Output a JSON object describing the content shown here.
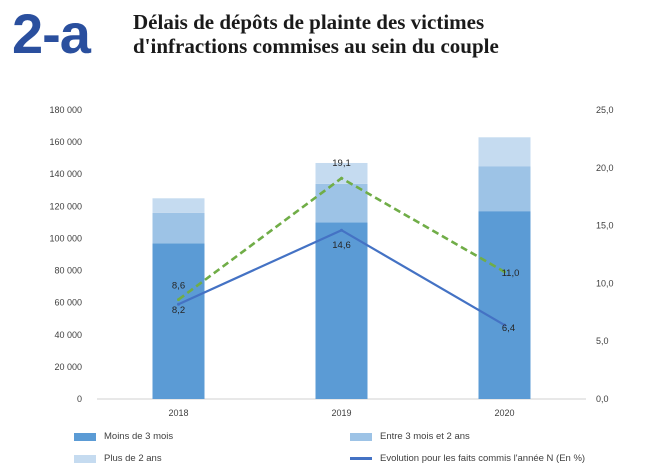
{
  "header": {
    "number": "2-a",
    "title_line1": "Délais de dépôts de plainte des victimes",
    "title_line2": "d'infractions commises au sein du couple"
  },
  "colors": {
    "moins3": "#5b9bd5",
    "entre": "#9dc3e6",
    "plus2": "#c5dbf0",
    "evolution": "#4472c4",
    "dashed": "#70ad47"
  },
  "chart_data": {
    "type": "bar",
    "stacked": true,
    "categories": [
      "2018",
      "2019",
      "2020"
    ],
    "series": [
      {
        "name": "Moins de 3 mois",
        "values": [
          97000,
          110000,
          117000
        ]
      },
      {
        "name": "Entre 3 mois et 2 ans",
        "values": [
          19000,
          24000,
          28000
        ]
      },
      {
        "name": "Plus de 2 ans",
        "values": [
          9000,
          13000,
          18000
        ]
      }
    ],
    "lines": [
      {
        "name": "Evolution pour les faits commis l'année N (En %)",
        "axis": "right",
        "style": "solid",
        "values": [
          8.2,
          14.6,
          6.4
        ],
        "labels": [
          "8,2",
          "14,6",
          "6,4"
        ]
      },
      {
        "name": "",
        "axis": "right",
        "style": "dashed",
        "values": [
          8.6,
          19.1,
          11.0
        ],
        "labels": [
          "8,6",
          "19,1",
          "11,0"
        ]
      }
    ],
    "ylim": [
      0,
      180000
    ],
    "y_ticks": [
      "0",
      "20 000",
      "40 000",
      "60 000",
      "80 000",
      "100 000",
      "120 000",
      "140 000",
      "160 000",
      "180 000"
    ],
    "y2lim": [
      0,
      25
    ],
    "y2_ticks": [
      "0,0",
      "5,0",
      "10,0",
      "15,0",
      "20,0",
      "25,0"
    ],
    "grid": false,
    "legend_position": "bottom"
  },
  "legend": [
    {
      "label": "Moins de 3 mois",
      "kind": "box",
      "color_key": "moins3"
    },
    {
      "label": "Entre 3 mois et 2 ans",
      "kind": "box",
      "color_key": "entre"
    },
    {
      "label": "Plus de 2 ans",
      "kind": "box",
      "color_key": "plus2"
    },
    {
      "label": "Evolution pour les faits commis l'année N (En %)",
      "kind": "line",
      "color_key": "evolution"
    }
  ]
}
